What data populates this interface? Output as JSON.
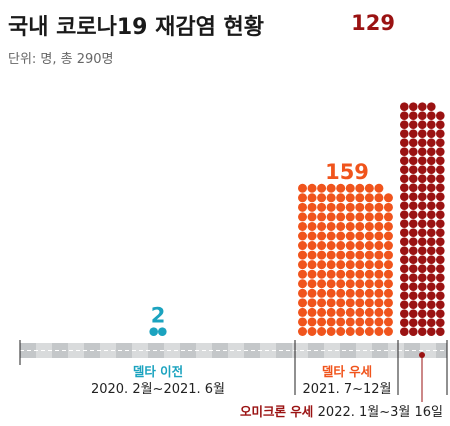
{
  "chart_data": {
    "type": "waffle",
    "title": "국내 코로나19 재감염 현황",
    "subtitle": "단위: 명, 총 290명",
    "series": [
      {
        "name": "델타 이전",
        "period": "2020. 2월~2021. 6월",
        "value": 2,
        "color": "#1ba3bf",
        "count_color": "#1ba3bf",
        "label_color": "#1ba3bf"
      },
      {
        "name": "델타 우세",
        "period": "2021. 7~12월",
        "value": 159,
        "color": "#f0541c",
        "count_color": "#f0541c",
        "label_color": "#f0541c"
      },
      {
        "name": "오미크론 우세",
        "period": "2022. 1월~3월 16일",
        "value": 129,
        "color": "#9a1212",
        "count_color": "#9a1212",
        "label_color": "#9a1212"
      }
    ],
    "legend": "none",
    "grid": false
  }
}
